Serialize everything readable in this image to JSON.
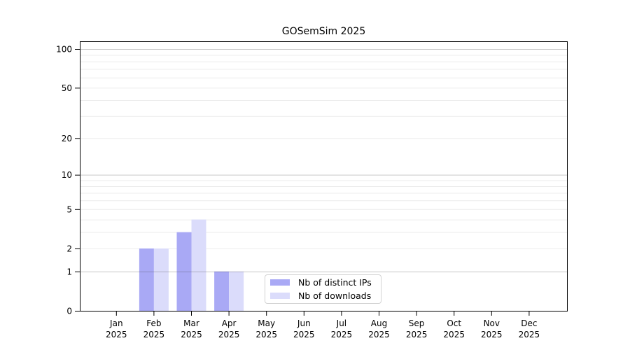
{
  "title": "GOSemSim 2025",
  "chart_data": {
    "type": "bar",
    "title": "GOSemSim 2025",
    "categories": [
      "Jan",
      "Feb",
      "Mar",
      "Apr",
      "May",
      "Jun",
      "Jul",
      "Aug",
      "Sep",
      "Oct",
      "Nov",
      "Dec"
    ],
    "year_label": "2025",
    "series": [
      {
        "name": "Nb of distinct IPs",
        "color": "#a9a9f5",
        "values": [
          0,
          2,
          3,
          1,
          0,
          0,
          0,
          0,
          0,
          0,
          0,
          0
        ]
      },
      {
        "name": "Nb of downloads",
        "color": "#dbdcfb",
        "values": [
          0,
          2,
          4,
          1,
          0,
          0,
          0,
          0,
          0,
          0,
          0,
          0
        ]
      }
    ],
    "xlabel": "",
    "ylabel": "",
    "y_scale": "log10(1+value)",
    "ylim": [
      0,
      115
    ],
    "y_tick_labels": [
      0,
      1,
      2,
      5,
      10,
      20,
      50,
      100
    ],
    "grid": true,
    "gridlines_decade": [
      1,
      10,
      100
    ],
    "gridlines_light": [
      2,
      3,
      4,
      5,
      6,
      7,
      8,
      9,
      20,
      30,
      40,
      50,
      60,
      70,
      80,
      90
    ],
    "legend_position": "inside-bottom-center"
  },
  "legend": {
    "items": [
      {
        "label": "Nb of distinct IPs",
        "color": "#a9a9f5"
      },
      {
        "label": "Nb of downloads",
        "color": "#dbdcfb"
      }
    ]
  },
  "colors": {
    "axis": "#000000",
    "grid_decade": "#c6c6c6",
    "grid_light": "#ececec",
    "tick_text": "#000000",
    "background": "#ffffff"
  }
}
